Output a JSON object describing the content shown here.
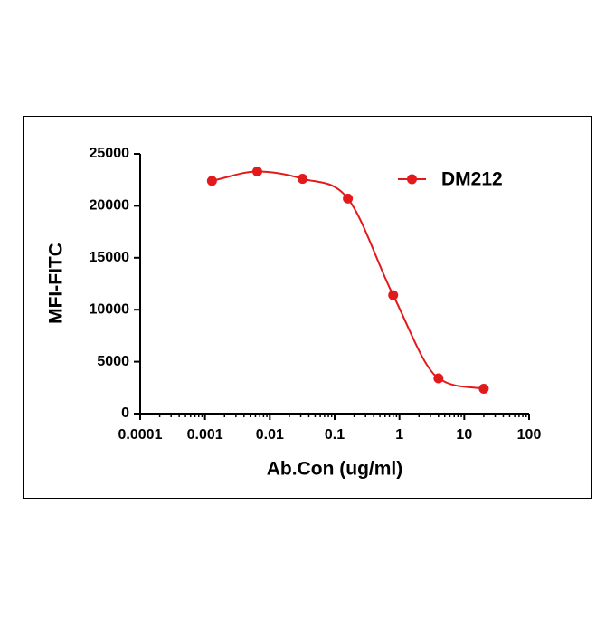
{
  "chart_data": {
    "type": "scatter",
    "xlabel": "Ab.Con (ug/ml)",
    "ylabel": "MFI-FITC",
    "x": [
      0.00128,
      0.0064,
      0.032,
      0.16,
      0.8,
      4,
      20
    ],
    "series": [
      {
        "name": "DM212",
        "color": "#e31a1c",
        "values": [
          22400,
          23300,
          22600,
          20700,
          11400,
          3400,
          2400
        ]
      }
    ],
    "xscale": "log",
    "xlim": [
      0.0001,
      100
    ],
    "xticks": [
      0.0001,
      0.001,
      0.01,
      0.1,
      1,
      10,
      100
    ],
    "ylim": [
      0,
      25000
    ],
    "yticks": [
      0,
      5000,
      10000,
      15000,
      20000,
      25000
    ],
    "legend": "upper right"
  }
}
